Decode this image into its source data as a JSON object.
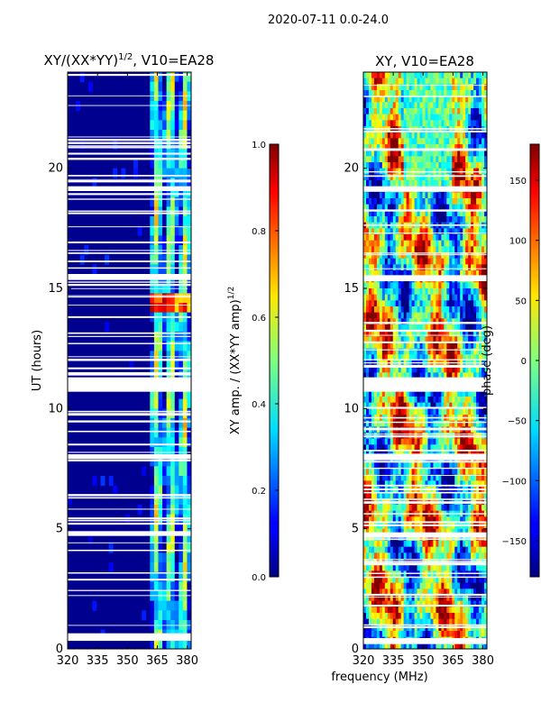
{
  "figure": {
    "suptitle": "2020-07-11 0.0-24.0",
    "shared_xlabel": "frequency (MHz)"
  },
  "chart_data": [
    {
      "type": "heatmap",
      "title_main": "XY/(XX*YY)",
      "title_sup": "1/2",
      "title_suffix": ", V10=EA28",
      "xlabel": "",
      "ylabel": "UT (hours)",
      "xlim": [
        320,
        382
      ],
      "ylim": [
        0,
        24
      ],
      "xticks": [
        320,
        335,
        350,
        365,
        380
      ],
      "yticks": [
        0,
        5,
        10,
        15,
        20
      ],
      "flagged_bands_hours": [
        [
          0.4,
          0.65
        ],
        [
          4.7,
          4.9
        ],
        [
          7.9,
          8.1
        ],
        [
          10.7,
          11.3
        ],
        [
          15.35,
          15.6
        ],
        [
          19.05,
          19.25
        ]
      ],
      "colorbar": {
        "label_main": "XY amp. / (XX*YY amp)",
        "label_sup": "1/2",
        "range": [
          0.0,
          1.0
        ],
        "ticks": [
          "0.0",
          "0.2",
          "0.4",
          "0.6",
          "0.8",
          "1.0"
        ],
        "tick_values": [
          0.0,
          0.2,
          0.4,
          0.6,
          0.8,
          1.0
        ]
      }
    },
    {
      "type": "heatmap",
      "title": "XY, V10=EA28",
      "xlabel": "frequency (MHz)",
      "ylabel": "",
      "xlim": [
        320,
        382
      ],
      "ylim": [
        0,
        24
      ],
      "xticks": [
        320,
        335,
        350,
        365,
        380
      ],
      "yticks": [
        0,
        5,
        10,
        15,
        20
      ],
      "flagged_bands_hours": [
        [
          0.2,
          0.45
        ],
        [
          4.7,
          4.85
        ],
        [
          7.85,
          8.05
        ],
        [
          10.7,
          11.3
        ],
        [
          15.3,
          15.55
        ],
        [
          19.05,
          19.25
        ]
      ],
      "colorbar": {
        "label": "phase (deg)",
        "range": [
          -180,
          180
        ],
        "ticks": [
          "−150",
          "−100",
          "−50",
          "0",
          "50",
          "100",
          "150"
        ],
        "tick_values": [
          -150,
          -100,
          -50,
          0,
          50,
          100,
          150
        ]
      }
    }
  ]
}
